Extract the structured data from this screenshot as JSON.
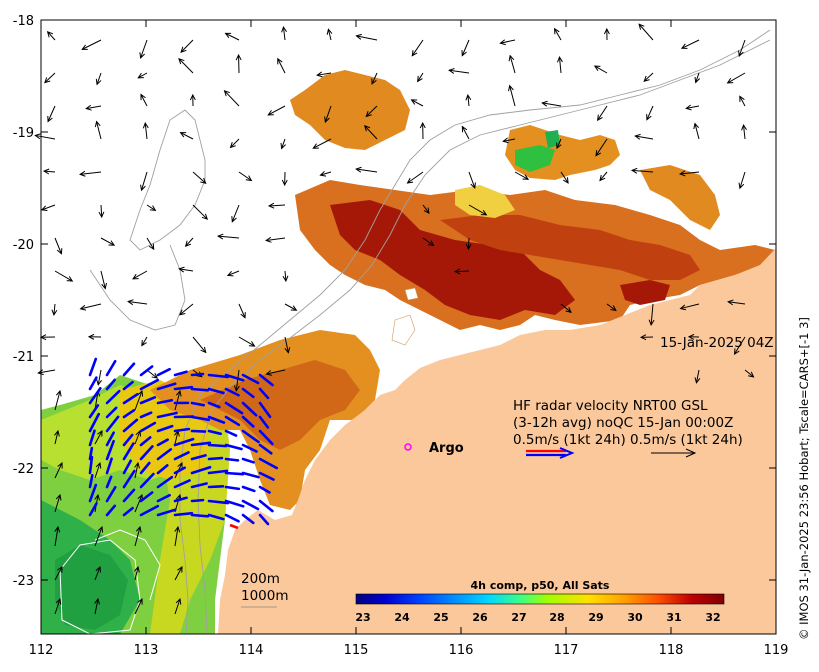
{
  "map": {
    "x_ticks": [
      "112",
      "113",
      "114",
      "115",
      "116",
      "117",
      "118",
      "119"
    ],
    "y_ticks": [
      "-18",
      "-19",
      "-20",
      "-21",
      "-22",
      "-23"
    ],
    "date_label": "15-Jan-2025 04Z",
    "legend": {
      "line1": "HF radar velocity  NRT00 GSL",
      "line2": "(3-12h avg) noQC 15-Jan 00:00Z",
      "line3": "0.5m/s (1kt 24h)  0.5m/s (1kt 24h)"
    },
    "argo_label": "Argo",
    "contour_labels": [
      "200m",
      "1000m"
    ],
    "colorbar": {
      "title": "4h comp, p50, All Sats",
      "ticks": [
        "23",
        "24",
        "25",
        "26",
        "27",
        "28",
        "29",
        "30",
        "31",
        "32"
      ],
      "colors": [
        "#00007f",
        "#0000d0",
        "#0040ff",
        "#0090ff",
        "#00d8ff",
        "#40ff80",
        "#a0ff00",
        "#ffe000",
        "#ffa000",
        "#ff5000",
        "#c00000",
        "#7f0000"
      ]
    },
    "credit": "© IMOS 31-Jan-2025 23:56 Hobart; Tscale=CARS+[-1 3]",
    "colors": {
      "land": "#fbc89c",
      "radar_vector": "#0000ff",
      "model_vector": "#000000",
      "argo_marker": "#ff00ff"
    }
  }
}
